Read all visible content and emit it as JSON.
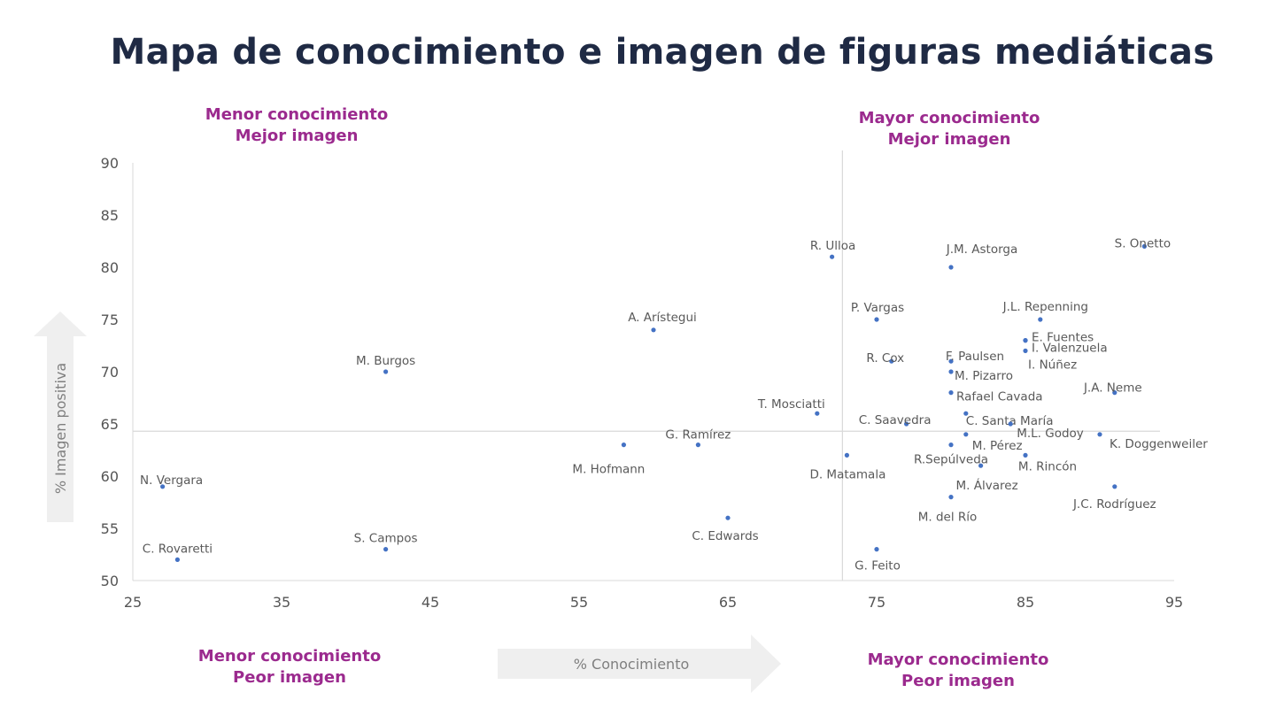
{
  "chart_data": {
    "type": "scatter",
    "title": "Mapa de conocimiento e imagen de figuras mediáticas",
    "xlabel": "% Conocimiento",
    "ylabel": "% Imagen positiva",
    "xlim": [
      25,
      95
    ],
    "ylim": [
      50,
      90
    ],
    "x_ticks": [
      "25",
      "35",
      "45",
      "55",
      "65",
      "75",
      "85",
      "95"
    ],
    "y_ticks": [
      "50",
      "55",
      "60",
      "65",
      "70",
      "75",
      "80",
      "85",
      "90"
    ],
    "grid": false,
    "reference_lines": {
      "x": 72.7,
      "y": 64.3
    },
    "point_color": "#4472c4",
    "quadrants": {
      "top_left": [
        "Menor conocimiento",
        "Mejor imagen"
      ],
      "top_right": [
        "Mayor conocimiento",
        "Mejor imagen"
      ],
      "bottom_left": [
        "Menor conocimiento",
        "Peor imagen"
      ],
      "bottom_right": [
        "Mayor conocimiento",
        "Peor imagen"
      ]
    },
    "points": [
      {
        "name": "N. Vergara",
        "x": 27,
        "y": 59
      },
      {
        "name": "C. Rovaretti",
        "x": 28,
        "y": 52
      },
      {
        "name": "S. Campos",
        "x": 42,
        "y": 53
      },
      {
        "name": "M. Burgos",
        "x": 42,
        "y": 70
      },
      {
        "name": "A. Arístegui",
        "x": 60,
        "y": 74
      },
      {
        "name": "M. Hofmann",
        "x": 58,
        "y": 63
      },
      {
        "name": "G. Ramírez",
        "x": 63,
        "y": 63
      },
      {
        "name": "C. Edwards",
        "x": 65,
        "y": 56
      },
      {
        "name": "T. Mosciatti",
        "x": 71,
        "y": 66
      },
      {
        "name": "R. Ulloa",
        "x": 72,
        "y": 81
      },
      {
        "name": "D. Matamala",
        "x": 73,
        "y": 62
      },
      {
        "name": "P. Vargas",
        "x": 75,
        "y": 75
      },
      {
        "name": "G. Feito",
        "x": 75,
        "y": 53
      },
      {
        "name": "R. Cox",
        "x": 76,
        "y": 71
      },
      {
        "name": "C. Saavedra",
        "x": 77,
        "y": 65
      },
      {
        "name": "J.M. Astorga",
        "x": 80,
        "y": 80
      },
      {
        "name": "F. Paulsen",
        "x": 80,
        "y": 71
      },
      {
        "name": "M. Pizarro",
        "x": 80,
        "y": 70
      },
      {
        "name": "Rafael Cavada",
        "x": 80,
        "y": 68
      },
      {
        "name": "R.Sepúlveda",
        "x": 80,
        "y": 63
      },
      {
        "name": "M. del Río",
        "x": 80,
        "y": 58
      },
      {
        "name": "C. Santa María",
        "x": 81,
        "y": 66
      },
      {
        "name": "M. Pérez",
        "x": 81,
        "y": 64
      },
      {
        "name": "M. Álvarez",
        "x": 82,
        "y": 61
      },
      {
        "name": "M.L. Godoy",
        "x": 84,
        "y": 65
      },
      {
        "name": "E. Fuentes",
        "x": 85,
        "y": 73
      },
      {
        "name": "I. Valenzuela",
        "x": 85,
        "y": 73
      },
      {
        "name": "I. Núñez",
        "x": 85,
        "y": 72
      },
      {
        "name": "M. Rincón",
        "x": 85,
        "y": 62
      },
      {
        "name": "J.L. Repenning",
        "x": 86,
        "y": 75
      },
      {
        "name": "K. Doggenweiler",
        "x": 90,
        "y": 64
      },
      {
        "name": "J.A. Neme",
        "x": 91,
        "y": 68
      },
      {
        "name": "J.C. Rodríguez",
        "x": 91,
        "y": 59
      },
      {
        "name": "S. Onetto",
        "x": 93,
        "y": 82
      }
    ]
  }
}
